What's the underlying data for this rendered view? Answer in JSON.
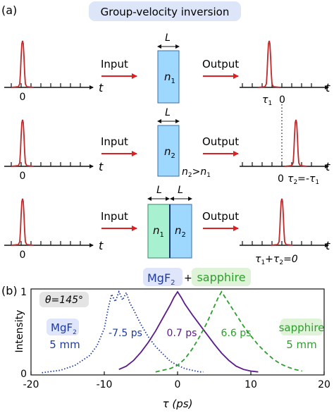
{
  "panel_a": {
    "label": "(a)",
    "title": "Group-velocity inversion",
    "input_label": "Input",
    "output_label": "Output",
    "axis_var": "t",
    "zero": "0",
    "length_label": "L",
    "row1": {
      "crystal": "n",
      "crystal_sub": "1",
      "out_tau": "τ",
      "out_tau_sub": "1",
      "out_zero": "0"
    },
    "row2": {
      "crystal": "n",
      "crystal_sub": "2",
      "cond_a": "n",
      "cond_a_sub": "2",
      "cond_op": ">n",
      "cond_b_sub": "1",
      "out_zero": "0",
      "out_tau": "τ",
      "out_tau_sub": "2",
      "out_eq": "=-τ",
      "out_eq_sub": "1"
    },
    "row3": {
      "crystal_left": "n",
      "crystal_left_sub": "1",
      "crystal_right": "n",
      "crystal_right_sub": "2",
      "out_t1": "τ",
      "out_t1_sub": "1",
      "out_plus": "+τ",
      "out_t2_sub": "2",
      "out_eq": "=0"
    },
    "colors": {
      "pulse": "#c0282a",
      "arrow": "#e02020",
      "crystal1": "#9fd8ff",
      "crystal2": "#a7f0d0",
      "title_bg": "#dde6f8"
    }
  },
  "panel_b": {
    "label": "(b)",
    "top_label_mgf": "MgF",
    "top_label_mgf_sub": "2",
    "top_plus": "+",
    "top_label_sapphire": "sapphire",
    "theta_label": "θ=145°",
    "left_material": "MgF",
    "left_material_sub": "2",
    "left_thickness": "5 mm",
    "right_material": "sapphire",
    "right_thickness": "5 mm",
    "ann_mgf": "-7.5 ps",
    "ann_both": "0.7 ps",
    "ann_sapphire": "6.6 ps",
    "colors": {
      "mgf": "#1f3a9f",
      "both": "#5b1a8c",
      "sapphire": "#2e9e2e",
      "mgf_bg": "#dfe5fb",
      "sapphire_bg": "#dff3d8"
    }
  },
  "chart_data": {
    "type": "line",
    "xlabel": "τ (ps)",
    "ylabel": "Intensity",
    "xlim": [
      -20,
      20
    ],
    "ylim": [
      0,
      1
    ],
    "xticks": [
      "-20",
      "-10",
      "0",
      "10",
      "20"
    ],
    "yticks": [
      "0",
      "1"
    ],
    "series": [
      {
        "name": "MgF₂",
        "style": "dotted",
        "x": [
          -18.5,
          -16,
          -14,
          -12,
          -11,
          -10,
          -9.5,
          -9,
          -8.5,
          -8,
          -7.5,
          -7,
          -6.5,
          -6,
          -5,
          -4,
          -3,
          -2,
          -1,
          0,
          1,
          2,
          3,
          3.5
        ],
        "y": [
          0.01,
          0.04,
          0.1,
          0.22,
          0.34,
          0.55,
          0.78,
          0.97,
          0.88,
          1.0,
          0.9,
          0.99,
          0.86,
          0.78,
          0.6,
          0.45,
          0.33,
          0.24,
          0.15,
          0.1,
          0.06,
          0.04,
          0.02,
          0.02
        ]
      },
      {
        "name": "MgF₂+sapphire",
        "style": "solid",
        "x": [
          -8,
          -7,
          -6,
          -5,
          -4,
          -3,
          -2,
          -1,
          -0.5,
          0,
          0.5,
          1,
          2,
          3,
          4,
          5,
          6,
          7,
          8,
          9,
          10,
          11
        ],
        "y": [
          0.05,
          0.09,
          0.16,
          0.26,
          0.38,
          0.52,
          0.68,
          0.84,
          0.93,
          1.0,
          0.93,
          0.85,
          0.72,
          0.6,
          0.48,
          0.36,
          0.25,
          0.16,
          0.09,
          0.05,
          0.03,
          0.02
        ]
      },
      {
        "name": "sapphire",
        "style": "dashed",
        "x": [
          -3,
          -1,
          0,
          1,
          2,
          3,
          4,
          5,
          5.5,
          6,
          6.5,
          7,
          8,
          9,
          10,
          11,
          12,
          13,
          14,
          15,
          16,
          17
        ],
        "y": [
          0.02,
          0.06,
          0.1,
          0.18,
          0.3,
          0.45,
          0.62,
          0.82,
          0.92,
          1.0,
          0.93,
          0.86,
          0.72,
          0.58,
          0.46,
          0.35,
          0.26,
          0.18,
          0.12,
          0.08,
          0.05,
          0.03
        ]
      }
    ]
  }
}
